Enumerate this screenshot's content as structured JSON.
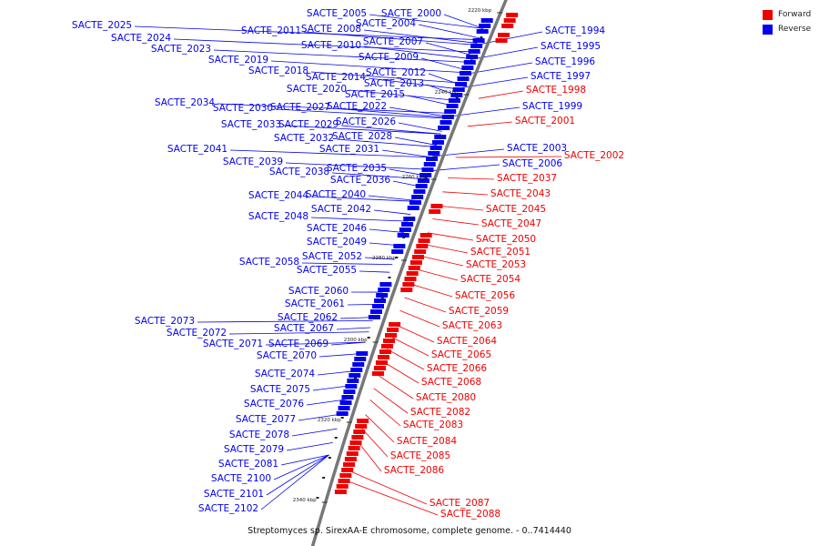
{
  "legend": {
    "forward_label": "Forward",
    "reverse_label": "Reverse",
    "forward_color": "#ee0000",
    "reverse_color": "#0000ee"
  },
  "caption": "Streptomyces sp. SirexAA-E chromosome, complete genome. - 0..7414440",
  "ticks": [
    "2220 kbp",
    "2240 kbp",
    "2260 kbp",
    "2280 kbp",
    "2300 kbp",
    "2320 kbp",
    "2340 kbp"
  ],
  "reverse_labels": [
    "SACTE_2005",
    "SACTE_2000",
    "SACTE_2025",
    "SACTE_2004",
    "SACTE_2011",
    "SACTE_2008",
    "SACTE_2024",
    "SACTE_2007",
    "SACTE_2010",
    "SACTE_2023",
    "SACTE_2009",
    "SACTE_2019",
    "SACTE_2018",
    "SACTE_2012",
    "SACTE_2014",
    "SACTE_2013",
    "SACTE_2020",
    "SACTE_2015",
    "SACTE_2034",
    "SACTE_2030",
    "SACTE_2027",
    "SACTE_2022",
    "SACTE_2033",
    "SACTE_2029",
    "SACTE_2026",
    "SACTE_2028",
    "SACTE_2032",
    "SACTE_2041",
    "SACTE_2031",
    "SACTE_2039",
    "SACTE_2038",
    "SACTE_2035",
    "SACTE_2036",
    "SACTE_2044",
    "SACTE_2040",
    "SACTE_2042",
    "SACTE_2048",
    "SACTE_2046",
    "SACTE_2049",
    "SACTE_2052",
    "SACTE_2058",
    "SACTE_2055",
    "SACTE_2060",
    "SACTE_2061",
    "SACTE_2062",
    "SACTE_2073",
    "SACTE_2067",
    "SACTE_2072",
    "SACTE_2071",
    "SACTE_2069",
    "SACTE_2070",
    "SACTE_2074",
    "SACTE_2075",
    "SACTE_2076",
    "SACTE_2077",
    "SACTE_2078",
    "SACTE_2079",
    "SACTE_2081",
    "SACTE_2100",
    "SACTE_2101",
    "SACTE_2102",
    "SACTE_1994",
    "SACTE_1995",
    "SACTE_1996",
    "SACTE_1997",
    "SACTE_1999",
    "SACTE_2003",
    "SACTE_2006"
  ],
  "forward_labels": [
    "SACTE_1998",
    "SACTE_2001",
    "SACTE_2002",
    "SACTE_2037",
    "SACTE_2043",
    "SACTE_2045",
    "SACTE_2047",
    "SACTE_2050",
    "SACTE_2051",
    "SACTE_2053",
    "SACTE_2054",
    "SACTE_2056",
    "SACTE_2059",
    "SACTE_2063",
    "SACTE_2064",
    "SACTE_2065",
    "SACTE_2066",
    "SACTE_2068",
    "SACTE_2080",
    "SACTE_2082",
    "SACTE_2083",
    "SACTE_2084",
    "SACTE_2085",
    "SACTE_2086",
    "SACTE_2087",
    "SACTE_2088"
  ]
}
